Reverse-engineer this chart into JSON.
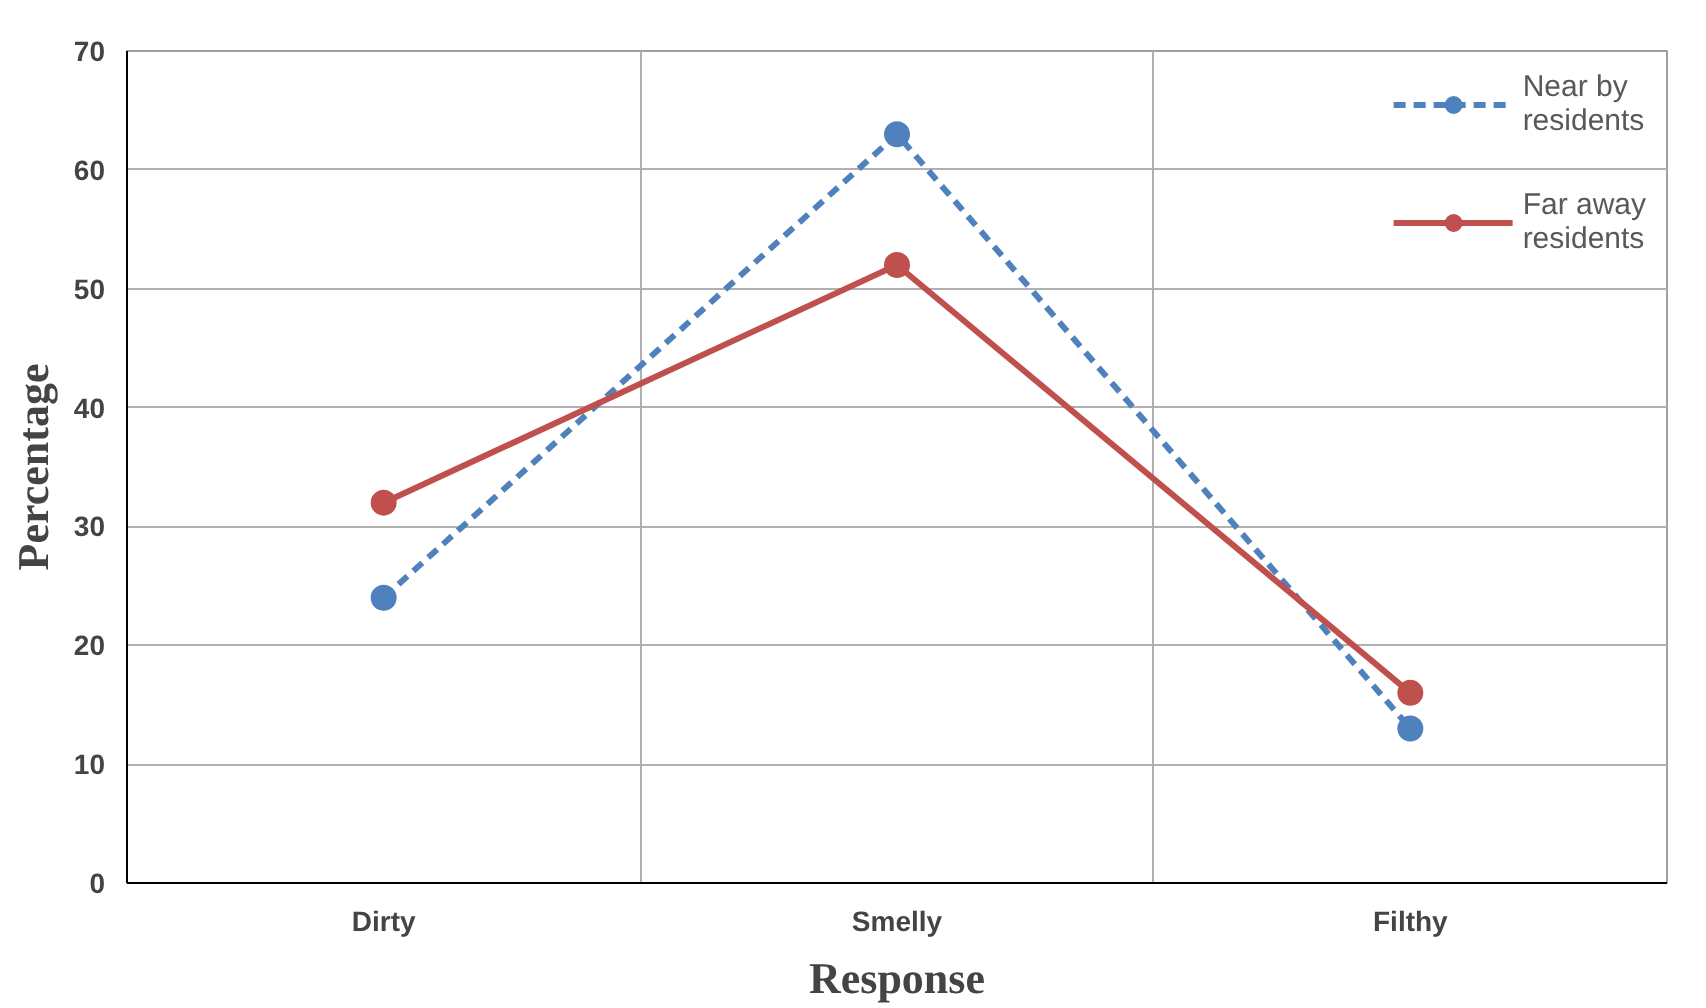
{
  "chart_data": {
    "type": "line",
    "xlabel": "Response",
    "ylabel": "Percentage",
    "categories": [
      "Dirty",
      "Smelly",
      "Filthy"
    ],
    "series": [
      {
        "name": "Near by residents",
        "color": "#4f81bd",
        "values": [
          24,
          63,
          13
        ],
        "line_style": "dashed"
      },
      {
        "name": "Far away residents",
        "color": "#c0504d",
        "values": [
          32,
          52,
          16
        ],
        "line_style": "solid"
      }
    ],
    "ylim": [
      0,
      70
    ],
    "yticks": [
      0,
      10,
      20,
      30,
      40,
      50,
      60,
      70
    ],
    "grid": true,
    "legend": "top right",
    "marker": "circle"
  }
}
